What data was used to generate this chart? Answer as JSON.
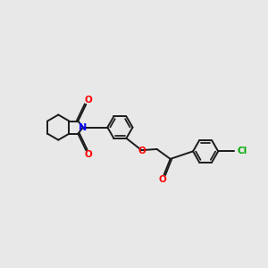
{
  "background_color": "#e8e8e8",
  "bond_color": "#1a1a1a",
  "N_color": "#0000ff",
  "O_color": "#ff0000",
  "Cl_color": "#00aa00",
  "line_width": 1.4,
  "figsize": [
    3.0,
    3.0
  ],
  "dpi": 100,
  "xlim": [
    0,
    10
  ],
  "ylim": [
    0,
    10
  ]
}
